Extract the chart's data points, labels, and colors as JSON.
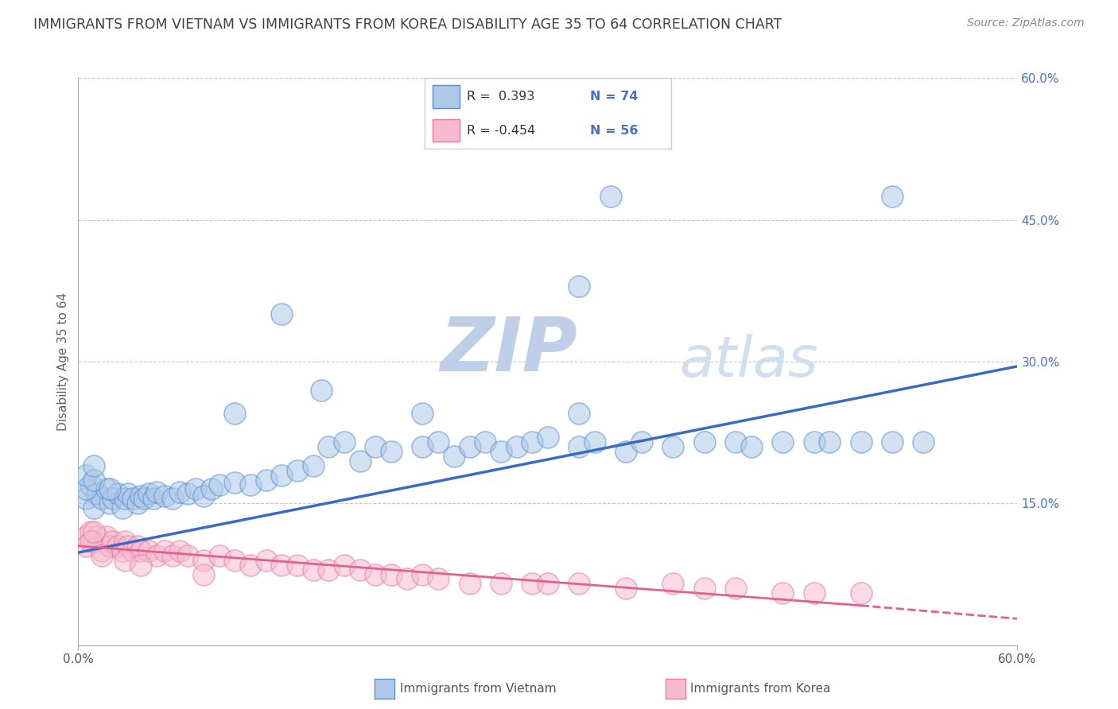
{
  "title": "IMMIGRANTS FROM VIETNAM VS IMMIGRANTS FROM KOREA DISABILITY AGE 35 TO 64 CORRELATION CHART",
  "source": "Source: ZipAtlas.com",
  "ylabel": "Disability Age 35 to 64",
  "xlim": [
    0.0,
    0.6
  ],
  "ylim": [
    0.0,
    0.6
  ],
  "ytick_positions": [
    0.15,
    0.3,
    0.45,
    0.6
  ],
  "ytick_labels": [
    "15.0%",
    "30.0%",
    "45.0%",
    "60.0%"
  ],
  "legend_bottom_labels": [
    "Immigrants from Vietnam",
    "Immigrants from Korea"
  ],
  "r_vietnam": 0.393,
  "n_vietnam": 74,
  "r_korea": -0.454,
  "n_korea": 56,
  "vietnam_color": "#aec9e8",
  "vietnam_edge_color": "#5b8fd4",
  "vietnam_line_color": "#3a6bc4",
  "korea_color": "#f5bcd0",
  "korea_edge_color": "#e87aa0",
  "korea_line_color": "#e06090",
  "background_color": "#ffffff",
  "grid_color": "#c8c8c8",
  "watermark_zip_color": "#c0cfe8",
  "watermark_atlas_color": "#d0dff0",
  "title_color": "#404040",
  "axis_label_color": "#606060",
  "tick_color": "#4472c4",
  "vietnam_points": [
    [
      0.005,
      0.155
    ],
    [
      0.008,
      0.17
    ],
    [
      0.01,
      0.145
    ],
    [
      0.012,
      0.16
    ],
    [
      0.015,
      0.155
    ],
    [
      0.018,
      0.165
    ],
    [
      0.02,
      0.15
    ],
    [
      0.022,
      0.155
    ],
    [
      0.025,
      0.16
    ],
    [
      0.028,
      0.145
    ],
    [
      0.03,
      0.155
    ],
    [
      0.032,
      0.16
    ],
    [
      0.035,
      0.155
    ],
    [
      0.038,
      0.15
    ],
    [
      0.04,
      0.158
    ],
    [
      0.042,
      0.155
    ],
    [
      0.045,
      0.16
    ],
    [
      0.048,
      0.155
    ],
    [
      0.05,
      0.162
    ],
    [
      0.055,
      0.158
    ],
    [
      0.06,
      0.155
    ],
    [
      0.065,
      0.162
    ],
    [
      0.07,
      0.16
    ],
    [
      0.075,
      0.165
    ],
    [
      0.08,
      0.158
    ],
    [
      0.085,
      0.165
    ],
    [
      0.09,
      0.17
    ],
    [
      0.1,
      0.172
    ],
    [
      0.11,
      0.17
    ],
    [
      0.12,
      0.175
    ],
    [
      0.13,
      0.18
    ],
    [
      0.14,
      0.185
    ],
    [
      0.15,
      0.19
    ],
    [
      0.16,
      0.21
    ],
    [
      0.17,
      0.215
    ],
    [
      0.18,
      0.195
    ],
    [
      0.19,
      0.21
    ],
    [
      0.2,
      0.205
    ],
    [
      0.22,
      0.21
    ],
    [
      0.23,
      0.215
    ],
    [
      0.24,
      0.2
    ],
    [
      0.25,
      0.21
    ],
    [
      0.26,
      0.215
    ],
    [
      0.27,
      0.205
    ],
    [
      0.28,
      0.21
    ],
    [
      0.29,
      0.215
    ],
    [
      0.3,
      0.22
    ],
    [
      0.32,
      0.21
    ],
    [
      0.33,
      0.215
    ],
    [
      0.35,
      0.205
    ],
    [
      0.36,
      0.215
    ],
    [
      0.38,
      0.21
    ],
    [
      0.4,
      0.215
    ],
    [
      0.42,
      0.215
    ],
    [
      0.43,
      0.21
    ],
    [
      0.45,
      0.215
    ],
    [
      0.47,
      0.215
    ],
    [
      0.48,
      0.215
    ],
    [
      0.5,
      0.215
    ],
    [
      0.52,
      0.215
    ],
    [
      0.54,
      0.215
    ],
    [
      0.1,
      0.245
    ],
    [
      0.155,
      0.27
    ],
    [
      0.22,
      0.245
    ],
    [
      0.32,
      0.245
    ],
    [
      0.32,
      0.38
    ],
    [
      0.13,
      0.35
    ],
    [
      0.34,
      0.475
    ],
    [
      0.52,
      0.475
    ],
    [
      0.005,
      0.165
    ],
    [
      0.005,
      0.18
    ],
    [
      0.01,
      0.175
    ],
    [
      0.01,
      0.19
    ],
    [
      0.02,
      0.165
    ]
  ],
  "korea_points": [
    [
      0.005,
      0.115
    ],
    [
      0.008,
      0.12
    ],
    [
      0.01,
      0.11
    ],
    [
      0.012,
      0.115
    ],
    [
      0.015,
      0.1
    ],
    [
      0.018,
      0.115
    ],
    [
      0.02,
      0.105
    ],
    [
      0.022,
      0.11
    ],
    [
      0.025,
      0.105
    ],
    [
      0.028,
      0.1
    ],
    [
      0.03,
      0.11
    ],
    [
      0.032,
      0.105
    ],
    [
      0.035,
      0.1
    ],
    [
      0.038,
      0.105
    ],
    [
      0.04,
      0.1
    ],
    [
      0.045,
      0.1
    ],
    [
      0.05,
      0.095
    ],
    [
      0.055,
      0.1
    ],
    [
      0.06,
      0.095
    ],
    [
      0.065,
      0.1
    ],
    [
      0.07,
      0.095
    ],
    [
      0.08,
      0.09
    ],
    [
      0.09,
      0.095
    ],
    [
      0.1,
      0.09
    ],
    [
      0.11,
      0.085
    ],
    [
      0.12,
      0.09
    ],
    [
      0.13,
      0.085
    ],
    [
      0.14,
      0.085
    ],
    [
      0.15,
      0.08
    ],
    [
      0.16,
      0.08
    ],
    [
      0.17,
      0.085
    ],
    [
      0.18,
      0.08
    ],
    [
      0.19,
      0.075
    ],
    [
      0.2,
      0.075
    ],
    [
      0.21,
      0.07
    ],
    [
      0.22,
      0.075
    ],
    [
      0.23,
      0.07
    ],
    [
      0.25,
      0.065
    ],
    [
      0.27,
      0.065
    ],
    [
      0.29,
      0.065
    ],
    [
      0.3,
      0.065
    ],
    [
      0.32,
      0.065
    ],
    [
      0.35,
      0.06
    ],
    [
      0.38,
      0.065
    ],
    [
      0.4,
      0.06
    ],
    [
      0.42,
      0.06
    ],
    [
      0.45,
      0.055
    ],
    [
      0.47,
      0.055
    ],
    [
      0.5,
      0.055
    ],
    [
      0.005,
      0.105
    ],
    [
      0.008,
      0.11
    ],
    [
      0.01,
      0.12
    ],
    [
      0.015,
      0.095
    ],
    [
      0.03,
      0.09
    ],
    [
      0.04,
      0.085
    ],
    [
      0.08,
      0.075
    ]
  ]
}
